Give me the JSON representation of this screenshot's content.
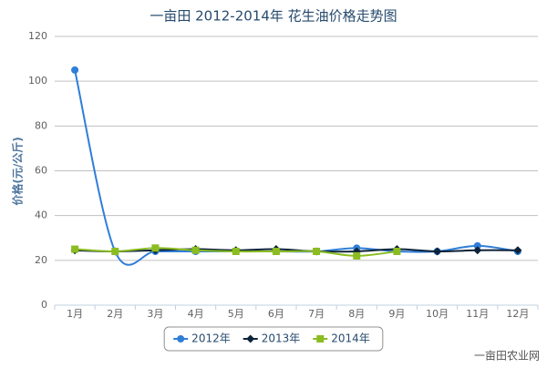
{
  "chart_data": {
    "type": "line",
    "title": "一亩田 2012-2014年 花生油价格走势图",
    "y_label": "价格(元/公斤)",
    "categories": [
      "1月",
      "2月",
      "3月",
      "4月",
      "5月",
      "6月",
      "7月",
      "8月",
      "9月",
      "10月",
      "11月",
      "12月"
    ],
    "series": [
      {
        "name": "2012年",
        "color": "#2f7ed8",
        "marker": "circle",
        "values": [
          105,
          24,
          24,
          24,
          24,
          24,
          24,
          25.5,
          24,
          24,
          26.5,
          24
        ]
      },
      {
        "name": "2013年",
        "color": "#0d233a",
        "marker": "diamond",
        "values": [
          24.5,
          24,
          24.5,
          25,
          24.5,
          25,
          24,
          24,
          25,
          24,
          24.5,
          24.5
        ]
      },
      {
        "name": "2014年",
        "color": "#8bbc21",
        "marker": "square",
        "values": [
          25,
          24,
          25.5,
          24.5,
          24,
          24,
          24,
          22,
          24,
          null,
          null,
          null
        ]
      }
    ],
    "ylim": [
      0,
      120
    ],
    "yticks": [
      0,
      20,
      40,
      60,
      80,
      100,
      120
    ],
    "grid": true,
    "smooth": true,
    "legend": "bottom",
    "watermark": "一亩田农业网"
  }
}
